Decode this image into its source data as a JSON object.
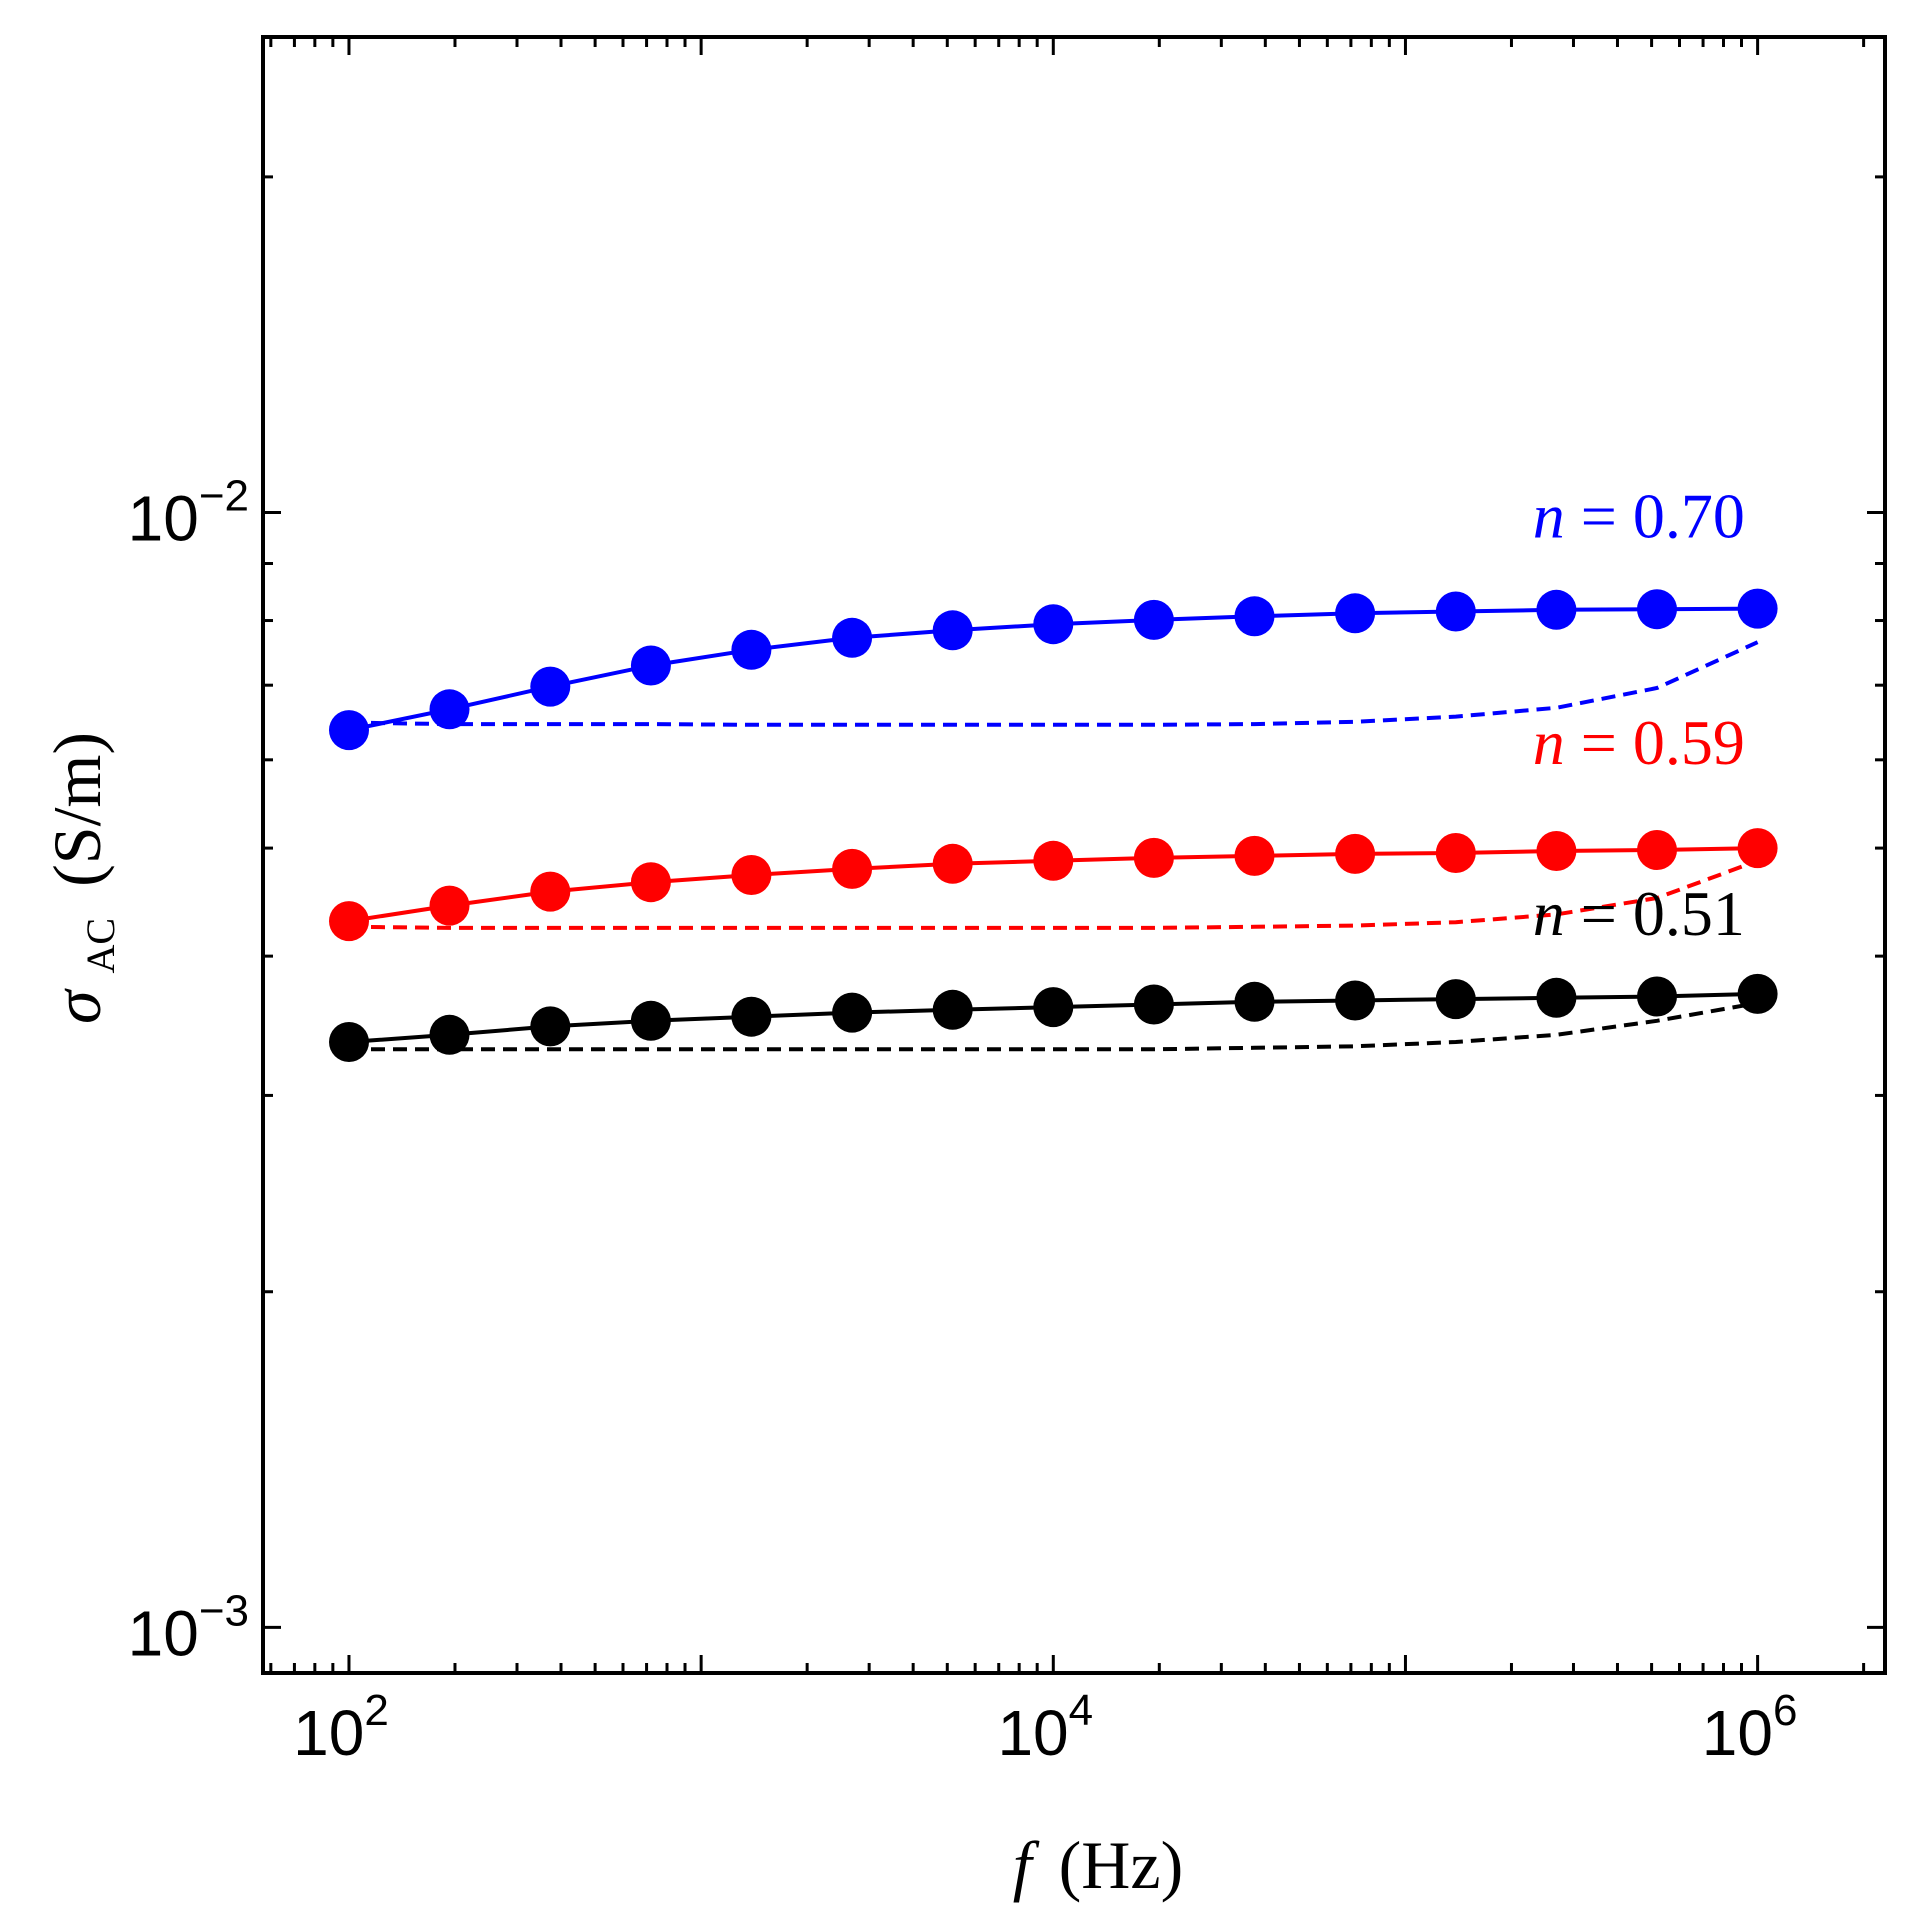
{
  "chart_data": {
    "type": "line",
    "title": "",
    "xlabel": {
      "italic": "f",
      "text": "(Hz)"
    },
    "ylabel": {
      "symbol": "σ",
      "subscript": "AC",
      "unit": "(S/m)"
    },
    "xscale": "log",
    "yscale": "log",
    "xlim": [
      57,
      2300000.0
    ],
    "ylim": [
      0.00091,
      0.0267
    ],
    "x_ticks": [
      {
        "value": 100,
        "base": "10",
        "exp": "2"
      },
      {
        "value": 10000,
        "base": "10",
        "exp": "4"
      },
      {
        "value": 1000000,
        "base": "10",
        "exp": "6"
      }
    ],
    "y_ticks": [
      {
        "value": 0.001,
        "base": "10",
        "exp": "−3"
      },
      {
        "value": 0.01,
        "base": "10",
        "exp": "−2"
      }
    ],
    "x": [
      100,
      193,
      373,
      720,
      1389,
      2683,
      5179,
      10000,
      19307,
      37276,
      71969,
      138950,
      268270,
      517950,
      1000000
    ],
    "series": [
      {
        "name": "n = 0.70",
        "color": "#0000ff",
        "label_italic": "n",
        "label_rest": " = 0.70",
        "label_anchor": {
          "x": 230000,
          "y": 0.0095
        },
        "measured": [
          0.00638,
          0.00666,
          0.00698,
          0.00729,
          0.00753,
          0.00772,
          0.00784,
          0.00794,
          0.00801,
          0.00807,
          0.00812,
          0.00815,
          0.00818,
          0.00819,
          0.0082
        ],
        "dashed_fit": [
          0.00648,
          0.00646,
          0.00646,
          0.00646,
          0.00645,
          0.00645,
          0.00645,
          0.00645,
          0.00645,
          0.00646,
          0.00649,
          0.00656,
          0.00668,
          0.00696,
          0.00765
        ]
      },
      {
        "name": "n = 0.59",
        "color": "#ff0000",
        "label_italic": "n",
        "label_rest": " = 0.59",
        "label_anchor": {
          "x": 230000,
          "y": 0.00595
        },
        "measured": [
          0.0043,
          0.00444,
          0.00457,
          0.00466,
          0.00473,
          0.00479,
          0.00484,
          0.00487,
          0.0049,
          0.00492,
          0.00494,
          0.00495,
          0.00497,
          0.00498,
          0.005
        ],
        "dashed_fit": [
          0.00425,
          0.00424,
          0.00424,
          0.00424,
          0.00424,
          0.00424,
          0.00424,
          0.00424,
          0.00424,
          0.00425,
          0.00426,
          0.00429,
          0.00436,
          0.00451,
          0.00487
        ]
      },
      {
        "name": "n = 0.51",
        "color": "#000000",
        "label_italic": "n",
        "label_rest": " = 0.51",
        "label_anchor": {
          "x": 230000,
          "y": 0.00418
        },
        "measured": [
          0.00335,
          0.0034,
          0.00346,
          0.0035,
          0.00353,
          0.00356,
          0.00358,
          0.0036,
          0.00362,
          0.00364,
          0.00365,
          0.00366,
          0.00367,
          0.00368,
          0.0037
        ],
        "dashed_fit": [
          0.0033,
          0.0033,
          0.0033,
          0.0033,
          0.0033,
          0.0033,
          0.0033,
          0.0033,
          0.0033,
          0.00331,
          0.00332,
          0.00335,
          0.0034,
          0.0035,
          0.00363
        ]
      }
    ]
  }
}
